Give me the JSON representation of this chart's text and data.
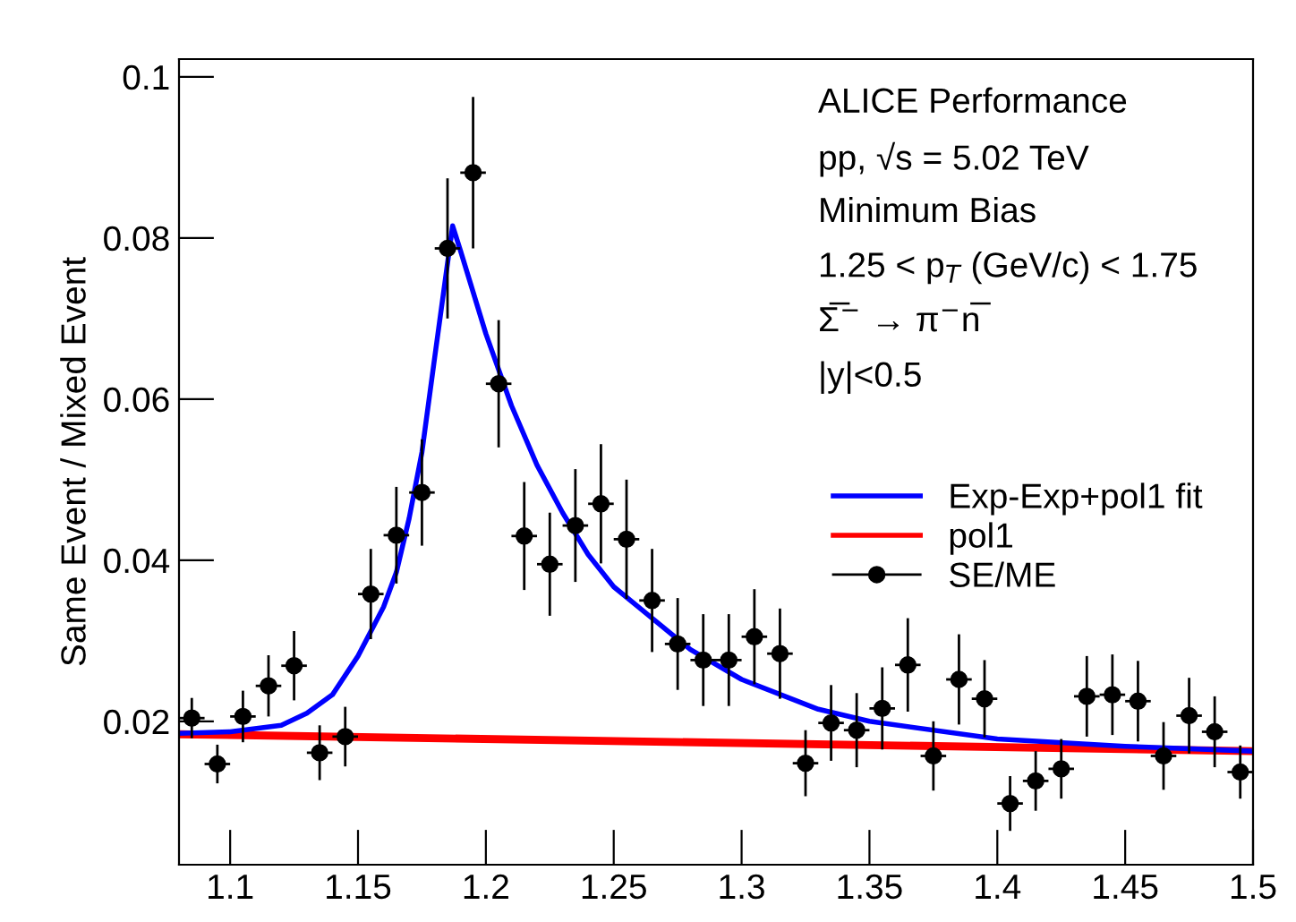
{
  "chart_data": {
    "type": "scatter",
    "ylabel": "Same Event / Mixed Event",
    "xlim": [
      1.08,
      1.5
    ],
    "xticks": [
      1.1,
      1.15,
      1.2,
      1.25,
      1.3,
      1.35,
      1.4,
      1.45,
      1.5
    ],
    "ylim": [
      0.0022,
      0.1022
    ],
    "yticks": [
      0.02,
      0.04,
      0.06,
      0.08,
      0.1
    ],
    "grid": false,
    "legend": "right",
    "annotations": [
      "ALICE Performance",
      "pp, √s = 5.02 TeV",
      "Minimum Bias",
      "1.25 < p$_{T}$ (GeV/c) < 1.75",
      "Σ̅$^{−}$ → π$^{−}$n̅",
      "|y|<0.5"
    ],
    "series": [
      {
        "name": "Exp-Exp+pol1 fit",
        "type": "line",
        "color": "#0000ff",
        "x": [
          1.08,
          1.1,
          1.12,
          1.13,
          1.14,
          1.15,
          1.16,
          1.165,
          1.17,
          1.175,
          1.18,
          1.187,
          1.19,
          1.2,
          1.21,
          1.22,
          1.23,
          1.24,
          1.25,
          1.26,
          1.28,
          1.3,
          1.33,
          1.35,
          1.4,
          1.45,
          1.5
        ],
        "values": [
          0.0185,
          0.0187,
          0.0195,
          0.021,
          0.0233,
          0.0281,
          0.0342,
          0.0385,
          0.0452,
          0.0534,
          0.0652,
          0.0815,
          0.0785,
          0.0681,
          0.0592,
          0.0518,
          0.0459,
          0.0407,
          0.0367,
          0.0341,
          0.0289,
          0.0252,
          0.0215,
          0.02,
          0.0178,
          0.0169,
          0.0163
        ]
      },
      {
        "name": "pol1",
        "type": "line",
        "color": "#ff0000",
        "x": [
          1.08,
          1.5
        ],
        "values": [
          0.0184,
          0.0163
        ]
      },
      {
        "name": "SE/ME",
        "type": "scatter",
        "color": "#000000",
        "marker": "circle",
        "x": [
          1.085,
          1.095,
          1.105,
          1.115,
          1.125,
          1.135,
          1.145,
          1.155,
          1.165,
          1.175,
          1.185,
          1.195,
          1.205,
          1.215,
          1.225,
          1.235,
          1.245,
          1.255,
          1.265,
          1.275,
          1.285,
          1.295,
          1.305,
          1.315,
          1.325,
          1.335,
          1.345,
          1.355,
          1.365,
          1.375,
          1.385,
          1.395,
          1.405,
          1.415,
          1.425,
          1.435,
          1.445,
          1.455,
          1.465,
          1.475,
          1.485,
          1.495
        ],
        "values": [
          0.0204,
          0.0147,
          0.0206,
          0.0244,
          0.0269,
          0.0161,
          0.0181,
          0.0358,
          0.0431,
          0.0484,
          0.0787,
          0.0881,
          0.0619,
          0.043,
          0.0395,
          0.0443,
          0.047,
          0.0426,
          0.035,
          0.0296,
          0.0276,
          0.0276,
          0.0305,
          0.0284,
          0.0148,
          0.0198,
          0.0189,
          0.0216,
          0.027,
          0.0157,
          0.0252,
          0.0228,
          0.0098,
          0.0126,
          0.0141,
          0.0231,
          0.0233,
          0.0225,
          0.0157,
          0.0207,
          0.0187,
          0.0137
        ],
        "errors": [
          0.0025,
          0.0024,
          0.0032,
          0.0038,
          0.0043,
          0.0034,
          0.0037,
          0.0056,
          0.006,
          0.0066,
          0.0087,
          0.0094,
          0.0079,
          0.0067,
          0.0064,
          0.007,
          0.0074,
          0.0074,
          0.0064,
          0.0057,
          0.0057,
          0.0057,
          0.0059,
          0.0056,
          0.0041,
          0.0047,
          0.0046,
          0.0051,
          0.0058,
          0.0043,
          0.0056,
          0.0048,
          0.0034,
          0.0037,
          0.0037,
          0.005,
          0.005,
          0.005,
          0.0042,
          0.0047,
          0.0044,
          0.0033
        ],
        "xerrors": [
          0.005,
          0.005,
          0.005,
          0.005,
          0.005,
          0.005,
          0.005,
          0.005,
          0.005,
          0.005,
          0.005,
          0.005,
          0.005,
          0.005,
          0.005,
          0.005,
          0.005,
          0.005,
          0.005,
          0.005,
          0.005,
          0.005,
          0.005,
          0.005,
          0.005,
          0.005,
          0.005,
          0.005,
          0.005,
          0.005,
          0.005,
          0.005,
          0.005,
          0.005,
          0.005,
          0.005,
          0.005,
          0.005,
          0.005,
          0.005,
          0.005,
          0.005
        ]
      }
    ]
  }
}
